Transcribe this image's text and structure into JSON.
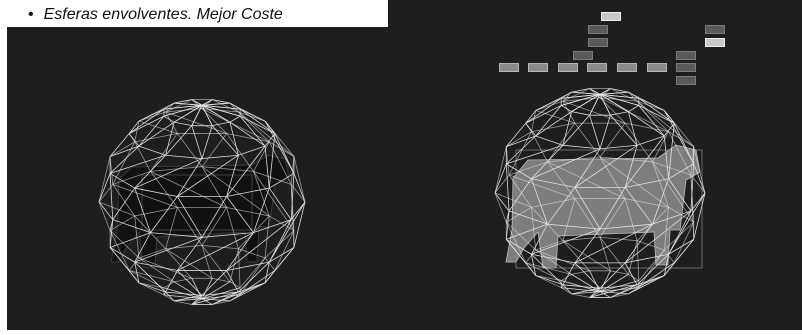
{
  "slide": {
    "bullet_symbol": "•",
    "bullet_text": "Esferas envolventes. Mejor Coste"
  },
  "scene_graph": {
    "nodes": [
      {
        "id": "n1",
        "label": "",
        "style": "light"
      },
      {
        "id": "n2",
        "label": "",
        "style": "dark"
      },
      {
        "id": "n3",
        "label": "",
        "style": "dark"
      },
      {
        "id": "n4",
        "label": "",
        "style": "dark"
      },
      {
        "id": "n5",
        "label": "",
        "style": "dark"
      },
      {
        "id": "n6",
        "label": "",
        "style": "light"
      },
      {
        "id": "n7",
        "label": "",
        "style": "normal"
      },
      {
        "id": "n8",
        "label": "",
        "style": "normal"
      },
      {
        "id": "n9",
        "label": "",
        "style": "normal"
      },
      {
        "id": "n10",
        "label": "",
        "style": "normal"
      },
      {
        "id": "n11",
        "label": "",
        "style": "normal"
      },
      {
        "id": "n12",
        "label": "",
        "style": "normal"
      },
      {
        "id": "n13",
        "label": "",
        "style": "dark"
      },
      {
        "id": "n14",
        "label": "",
        "style": "dark"
      },
      {
        "id": "n15",
        "label": "",
        "style": "dark"
      }
    ]
  },
  "colors": {
    "viewport_bg": "#1e1e1e",
    "wireframe": "#e6e6e6",
    "model": "#9a9a9a"
  }
}
